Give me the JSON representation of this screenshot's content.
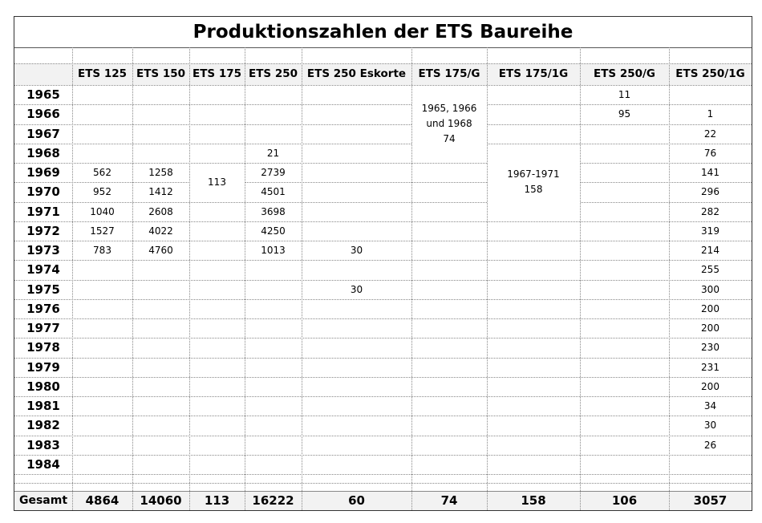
{
  "title": "Produktionszahlen der ETS Baureihe",
  "columns": [
    "ETS 125",
    "ETS 150",
    "ETS 175",
    "ETS 250",
    "ETS 250 Eskorte",
    "ETS 175/G",
    "ETS 175/1G",
    "ETS 250/G",
    "ETS 250/1G"
  ],
  "years": [
    "1965",
    "1966",
    "1967",
    "1968",
    "1969",
    "1970",
    "1971",
    "1972",
    "1973",
    "1974",
    "1975",
    "1976",
    "1977",
    "1978",
    "1979",
    "1980",
    "1981",
    "1982",
    "1983",
    "1984"
  ],
  "cells": [
    {
      "col": 1,
      "row": 4,
      "value": "562"
    },
    {
      "col": 1,
      "row": 5,
      "value": "952"
    },
    {
      "col": 1,
      "row": 6,
      "value": "1040"
    },
    {
      "col": 1,
      "row": 7,
      "value": "1527"
    },
    {
      "col": 1,
      "row": 8,
      "value": "783"
    },
    {
      "col": 2,
      "row": 4,
      "value": "1258"
    },
    {
      "col": 2,
      "row": 5,
      "value": "1412"
    },
    {
      "col": 2,
      "row": 6,
      "value": "2608"
    },
    {
      "col": 2,
      "row": 7,
      "value": "4022"
    },
    {
      "col": 2,
      "row": 8,
      "value": "4760"
    },
    {
      "col": 4,
      "row": 3,
      "value": "21"
    },
    {
      "col": 4,
      "row": 4,
      "value": "2739"
    },
    {
      "col": 4,
      "row": 5,
      "value": "4501"
    },
    {
      "col": 4,
      "row": 6,
      "value": "3698"
    },
    {
      "col": 4,
      "row": 7,
      "value": "4250"
    },
    {
      "col": 4,
      "row": 8,
      "value": "1013"
    },
    {
      "col": 5,
      "row": 8,
      "value": "30"
    },
    {
      "col": 5,
      "row": 10,
      "value": "30"
    },
    {
      "col": 8,
      "row": 0,
      "value": "11"
    },
    {
      "col": 8,
      "row": 1,
      "value": "95"
    },
    {
      "col": 9,
      "row": 1,
      "value": "1"
    },
    {
      "col": 9,
      "row": 2,
      "value": "22"
    },
    {
      "col": 9,
      "row": 3,
      "value": "76"
    },
    {
      "col": 9,
      "row": 4,
      "value": "141"
    },
    {
      "col": 9,
      "row": 5,
      "value": "296"
    },
    {
      "col": 9,
      "row": 6,
      "value": "282"
    },
    {
      "col": 9,
      "row": 7,
      "value": "319"
    },
    {
      "col": 9,
      "row": 8,
      "value": "214"
    },
    {
      "col": 9,
      "row": 9,
      "value": "255"
    },
    {
      "col": 9,
      "row": 10,
      "value": "300"
    },
    {
      "col": 9,
      "row": 11,
      "value": "200"
    },
    {
      "col": 9,
      "row": 12,
      "value": "200"
    },
    {
      "col": 9,
      "row": 13,
      "value": "230"
    },
    {
      "col": 9,
      "row": 14,
      "value": "231"
    },
    {
      "col": 9,
      "row": 15,
      "value": "200"
    },
    {
      "col": 9,
      "row": 16,
      "value": "34"
    },
    {
      "col": 9,
      "row": 17,
      "value": "30"
    },
    {
      "col": 9,
      "row": 18,
      "value": "26"
    }
  ],
  "merged": [
    {
      "col": 3,
      "startRow": 4,
      "rows": 2,
      "lines": [
        "113"
      ]
    },
    {
      "col": 6,
      "startRow": 0,
      "rows": 4,
      "lines": [
        "1965, 1966",
        "und 1968",
        "74"
      ]
    },
    {
      "col": 7,
      "startRow": 3,
      "rows": 4,
      "lines": [
        "1967-1971",
        "158"
      ]
    }
  ],
  "total_label": "Gesamt",
  "totals": [
    "4864",
    "14060",
    "113",
    "16222",
    "60",
    "74",
    "158",
    "106",
    "3057"
  ]
}
